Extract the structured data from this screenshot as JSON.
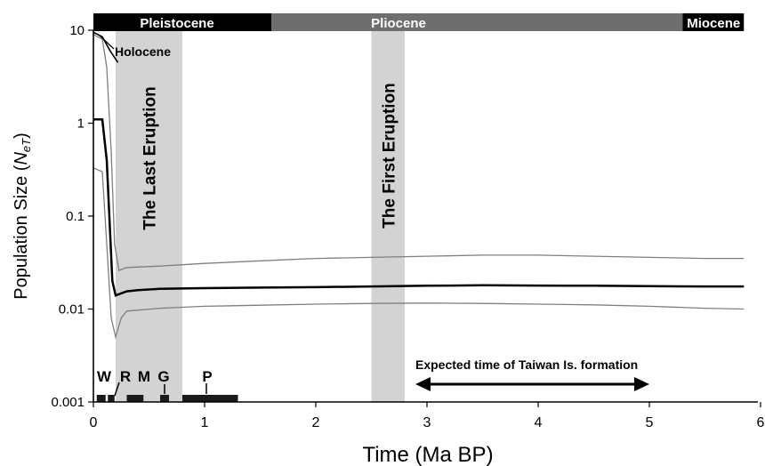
{
  "chart_data": {
    "type": "line",
    "xlabel": "Time (Ma BP)",
    "ylabel_main": "Population Size (",
    "ylabel_var": "N",
    "ylabel_sub": "eT",
    "ylabel_close": ")",
    "xlim": [
      0,
      5.85
    ],
    "ylim": [
      0.001,
      10
    ],
    "yscale": "log",
    "x_ticks": [
      "0",
      "1",
      "2",
      "3",
      "4",
      "5",
      "6"
    ],
    "x_tick_values": [
      0,
      1,
      2,
      3,
      4,
      5,
      6
    ],
    "y_ticks": [
      "0.001",
      "0.01",
      "0.1",
      "1",
      "10"
    ],
    "y_tick_values": [
      0.001,
      0.01,
      0.1,
      1,
      10
    ],
    "epochs": [
      {
        "label": "Pleistocene",
        "start": 0,
        "end": 1.6,
        "color": "#000000"
      },
      {
        "label": "Pliocene",
        "start": 1.6,
        "end": 5.3,
        "color": "#6e6e6e"
      },
      {
        "label": "Miocene",
        "start": 5.3,
        "end": 5.85,
        "color": "#000000"
      }
    ],
    "shaded_bands": [
      {
        "label": "The Last Eruption",
        "start": 0.2,
        "end": 0.8
      },
      {
        "label": "The First Eruption",
        "start": 2.5,
        "end": 2.8
      }
    ],
    "glaciations": [
      {
        "label": "W",
        "start": 0.03,
        "end": 0.11
      },
      {
        "label": "R",
        "start": 0.13,
        "end": 0.19
      },
      {
        "label": "M",
        "start": 0.3,
        "end": 0.45
      },
      {
        "label": "G",
        "start": 0.6,
        "end": 0.68
      },
      {
        "label": "P",
        "start": 0.8,
        "end": 1.3
      }
    ],
    "annotations": {
      "holocene": "Holocene",
      "taiwan": "Expected time of Taiwan Is. formation",
      "taiwan_range": [
        3.0,
        5.0
      ]
    },
    "series": [
      {
        "role": "median",
        "color": "#000000",
        "x": [
          0,
          0.08,
          0.12,
          0.17,
          0.2,
          0.3,
          0.4,
          0.6,
          1.0,
          1.5,
          2.0,
          2.5,
          3.0,
          3.5,
          4.0,
          4.5,
          5.0,
          5.5,
          5.85
        ],
        "y": [
          1.1,
          1.1,
          0.4,
          0.02,
          0.014,
          0.0155,
          0.016,
          0.0165,
          0.0168,
          0.017,
          0.0172,
          0.0175,
          0.0178,
          0.018,
          0.0179,
          0.0178,
          0.0176,
          0.0175,
          0.0175
        ]
      },
      {
        "role": "upper 95% HPD",
        "color": "#7f7f7f",
        "x": [
          0,
          0.08,
          0.12,
          0.16,
          0.19,
          0.23,
          0.3,
          0.6,
          1.0,
          1.5,
          2.0,
          2.5,
          3.0,
          3.5,
          4.0,
          4.5,
          5.0,
          5.5,
          5.85
        ],
        "y": [
          9,
          8,
          4,
          0.5,
          0.05,
          0.026,
          0.028,
          0.029,
          0.031,
          0.033,
          0.035,
          0.036,
          0.037,
          0.038,
          0.038,
          0.037,
          0.036,
          0.035,
          0.035
        ]
      },
      {
        "role": "lower 95% HPD",
        "color": "#7f7f7f",
        "x": [
          0,
          0.08,
          0.12,
          0.16,
          0.2,
          0.25,
          0.3,
          0.6,
          1.0,
          1.5,
          2.0,
          2.5,
          3.0,
          3.5,
          4.0,
          4.5,
          5.0,
          5.5,
          5.85
        ],
        "y": [
          0.33,
          0.3,
          0.05,
          0.008,
          0.005,
          0.008,
          0.0095,
          0.0102,
          0.0107,
          0.011,
          0.0113,
          0.0115,
          0.0116,
          0.0115,
          0.0113,
          0.0111,
          0.0107,
          0.0102,
          0.01
        ]
      },
      {
        "role": "holocene line",
        "color": "#000000",
        "x": [
          0,
          0.08,
          0.15,
          0.22
        ],
        "y": [
          9.5,
          8.5,
          6.0,
          4.5
        ]
      }
    ]
  }
}
